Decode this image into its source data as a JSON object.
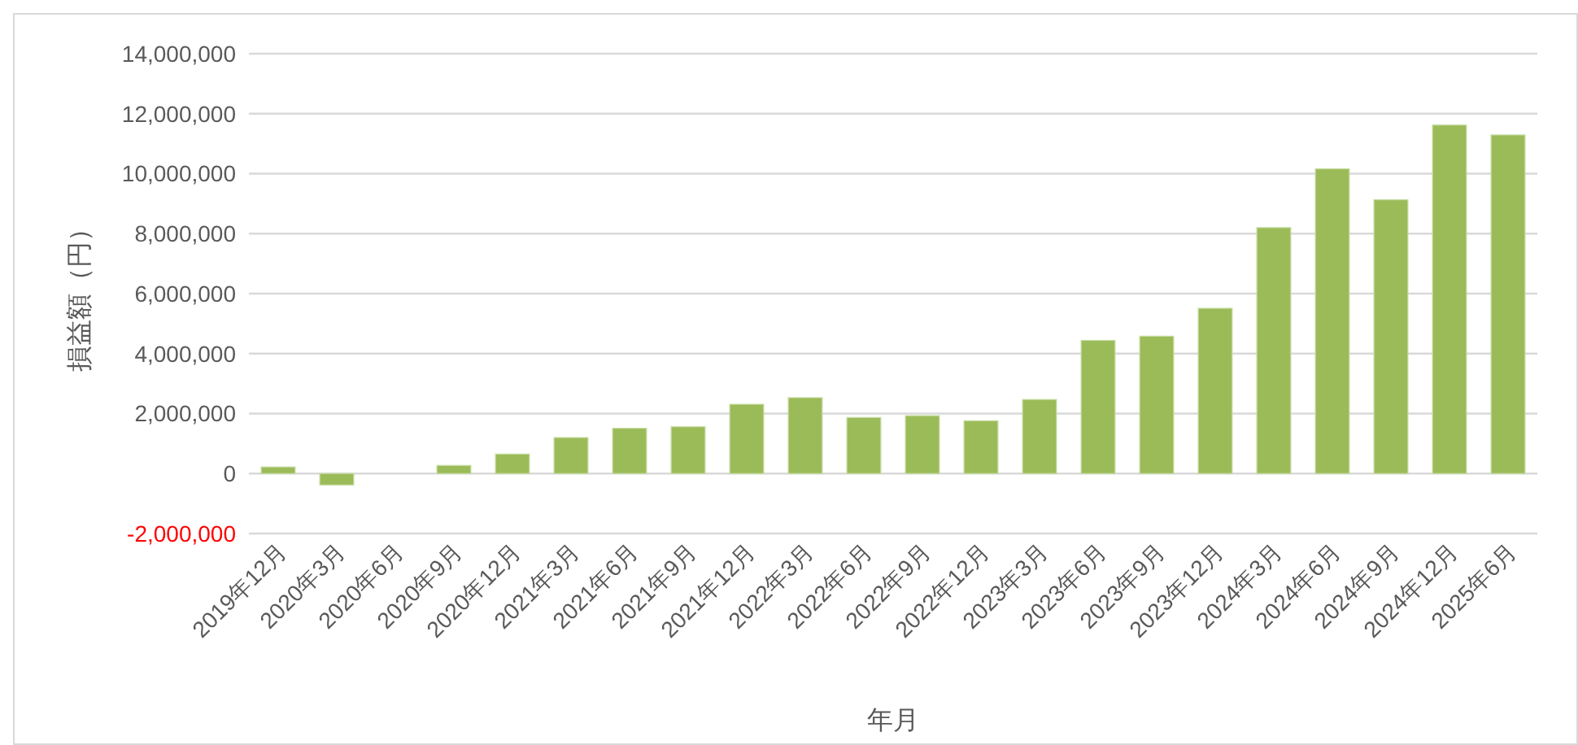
{
  "chart_data": {
    "type": "bar",
    "xlabel": "年月",
    "ylabel": "損益額（円）",
    "categories": [
      "2019年12月",
      "2020年3月",
      "2020年6月",
      "2020年9月",
      "2020年12月",
      "2021年3月",
      "2021年6月",
      "2021年9月",
      "2021年12月",
      "2022年3月",
      "2022年6月",
      "2022年9月",
      "2022年12月",
      "2023年3月",
      "2023年6月",
      "2023年9月",
      "2023年12月",
      "2024年3月",
      "2024年6月",
      "2024年9月",
      "2024年12月",
      "2025年6月"
    ],
    "values": [
      220000,
      -380000,
      0,
      270000,
      650000,
      1200000,
      1510000,
      1560000,
      2310000,
      2530000,
      1870000,
      1930000,
      1760000,
      2470000,
      4440000,
      4580000,
      5510000,
      8200000,
      10160000,
      9130000,
      11620000,
      11290000
    ],
    "color": "#9bbb59",
    "ylim": [
      -2000000,
      14000000
    ],
    "yticks": [
      {
        "value": -2000000,
        "label": "-2,000,000"
      },
      {
        "value": 0,
        "label": "0"
      },
      {
        "value": 2000000,
        "label": "2,000,000"
      },
      {
        "value": 4000000,
        "label": "4,000,000"
      },
      {
        "value": 6000000,
        "label": "6,000,000"
      },
      {
        "value": 8000000,
        "label": "8,000,000"
      },
      {
        "value": 10000000,
        "label": "10,000,000"
      },
      {
        "value": 12000000,
        "label": "12,000,000"
      },
      {
        "value": 14000000,
        "label": "14,000,000"
      }
    ],
    "grid": "y"
  }
}
